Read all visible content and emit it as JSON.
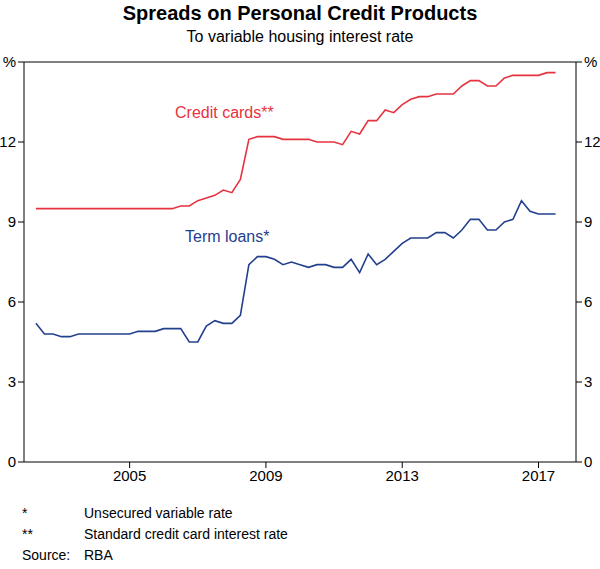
{
  "chart_data": {
    "type": "line",
    "title": "Spreads on Personal Credit Products",
    "subtitle": "To variable housing interest rate",
    "notes": [
      {
        "mark": "*",
        "text": "Unsecured variable rate"
      },
      {
        "mark": "**",
        "text": "Standard credit card interest rate"
      }
    ],
    "source": {
      "label": "Source:",
      "text": "RBA"
    },
    "x": [
      2002.25,
      2002.5,
      2002.75,
      2003.0,
      2003.25,
      2003.5,
      2003.75,
      2004.0,
      2004.25,
      2004.5,
      2004.75,
      2005.0,
      2005.25,
      2005.5,
      2005.75,
      2006.0,
      2006.25,
      2006.5,
      2006.75,
      2007.0,
      2007.25,
      2007.5,
      2007.75,
      2008.0,
      2008.25,
      2008.5,
      2008.75,
      2009.0,
      2009.25,
      2009.5,
      2009.75,
      2010.0,
      2010.25,
      2010.5,
      2010.75,
      2011.0,
      2011.25,
      2011.5,
      2011.75,
      2012.0,
      2012.25,
      2012.5,
      2012.75,
      2013.0,
      2013.25,
      2013.5,
      2013.75,
      2014.0,
      2014.25,
      2014.5,
      2014.75,
      2015.0,
      2015.25,
      2015.5,
      2015.75,
      2016.0,
      2016.25,
      2016.5,
      2016.75,
      2017.0,
      2017.25,
      2017.5
    ],
    "series": [
      {
        "name": "Credit cards**",
        "color": "#e5333f",
        "values": [
          9.5,
          9.5,
          9.5,
          9.5,
          9.5,
          9.5,
          9.5,
          9.5,
          9.5,
          9.5,
          9.5,
          9.5,
          9.5,
          9.5,
          9.5,
          9.5,
          9.5,
          9.6,
          9.6,
          9.8,
          9.9,
          10.0,
          10.2,
          10.1,
          10.6,
          12.1,
          12.2,
          12.2,
          12.2,
          12.1,
          12.1,
          12.1,
          12.1,
          12.0,
          12.0,
          12.0,
          11.9,
          12.4,
          12.3,
          12.8,
          12.8,
          13.2,
          13.1,
          13.4,
          13.6,
          13.7,
          13.7,
          13.8,
          13.8,
          13.8,
          14.1,
          14.3,
          14.3,
          14.1,
          14.1,
          14.4,
          14.5,
          14.5,
          14.5,
          14.5,
          14.6,
          14.6
        ]
      },
      {
        "name": "Term loans*",
        "color": "#23408f",
        "values": [
          5.2,
          4.8,
          4.8,
          4.7,
          4.7,
          4.8,
          4.8,
          4.8,
          4.8,
          4.8,
          4.8,
          4.8,
          4.9,
          4.9,
          4.9,
          5.0,
          5.0,
          5.0,
          4.5,
          4.5,
          5.1,
          5.3,
          5.2,
          5.2,
          5.5,
          7.4,
          7.7,
          7.7,
          7.6,
          7.4,
          7.5,
          7.4,
          7.3,
          7.4,
          7.4,
          7.3,
          7.3,
          7.6,
          7.1,
          7.8,
          7.4,
          7.6,
          7.9,
          8.2,
          8.4,
          8.4,
          8.4,
          8.6,
          8.6,
          8.4,
          8.7,
          9.1,
          9.1,
          8.7,
          8.7,
          9.0,
          9.1,
          9.8,
          9.4,
          9.3,
          9.3,
          9.3
        ]
      }
    ],
    "xlim": [
      2001.9,
      2018.1
    ],
    "xticks": [
      2005,
      2009,
      2013,
      2017
    ],
    "ylim": [
      0,
      15
    ],
    "yticks": [
      0,
      3,
      6,
      9,
      12,
      {
        "value": 15,
        "label": "%"
      }
    ],
    "y2lim": [
      0,
      15
    ],
    "y2ticks": [
      0,
      3,
      6,
      9,
      12,
      {
        "value": 15,
        "label": "%"
      }
    ],
    "grid": false
  }
}
